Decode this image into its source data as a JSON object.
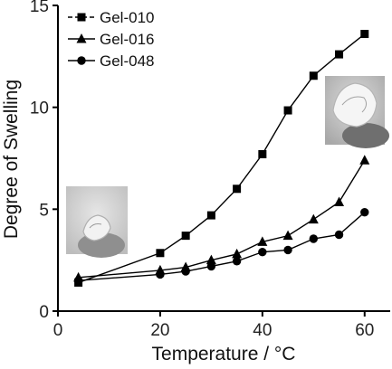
{
  "chart_data": {
    "type": "line",
    "title": "",
    "xlabel": "Temperature / °C",
    "ylabel": "Degree of Swelling",
    "xlim": [
      0,
      65
    ],
    "ylim": [
      0,
      15
    ],
    "xticks": [
      0,
      20,
      40,
      60
    ],
    "yticks": [
      0,
      5,
      10,
      15
    ],
    "xtick_labels": [
      "0",
      "20",
      "40",
      "60"
    ],
    "ytick_labels": [
      "0",
      "5",
      "10",
      "15"
    ],
    "grid": false,
    "legend_position": "top-left",
    "series": [
      {
        "name": "Gel-010",
        "marker": "square",
        "x": [
          4,
          20,
          25,
          30,
          35,
          40,
          45,
          50,
          55,
          60
        ],
        "y": [
          1.4,
          2.85,
          3.7,
          4.7,
          6.0,
          7.7,
          9.85,
          11.55,
          12.6,
          13.6
        ]
      },
      {
        "name": "Gel-016",
        "marker": "triangle",
        "x": [
          4,
          20,
          25,
          30,
          35,
          40,
          45,
          50,
          55,
          60
        ],
        "y": [
          1.65,
          2.0,
          2.15,
          2.5,
          2.8,
          3.4,
          3.7,
          4.5,
          5.35,
          7.4
        ]
      },
      {
        "name": "Gel-048",
        "marker": "circle",
        "x": [
          4,
          20,
          25,
          30,
          35,
          40,
          45,
          50,
          55,
          60
        ],
        "y": [
          1.5,
          1.8,
          1.95,
          2.2,
          2.45,
          2.9,
          3.0,
          3.55,
          3.75,
          4.85
        ]
      }
    ],
    "inset_photos": [
      {
        "subject": "small swollen gel piece on fingertip (low temperature)"
      },
      {
        "subject": "large swollen gel piece on fingertip (high temperature)"
      }
    ]
  }
}
